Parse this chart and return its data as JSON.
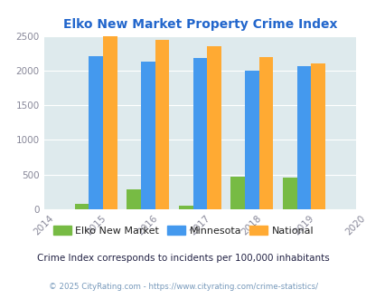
{
  "title": "Elko New Market Property Crime Index",
  "years": [
    2015,
    2016,
    2017,
    2018,
    2019
  ],
  "elko": [
    75,
    290,
    55,
    470,
    455
  ],
  "minnesota": [
    2210,
    2130,
    2185,
    2000,
    2065
  ],
  "national": [
    2490,
    2445,
    2350,
    2195,
    2100
  ],
  "xlim": [
    2014,
    2020
  ],
  "ylim": [
    0,
    2500
  ],
  "yticks": [
    0,
    500,
    1000,
    1500,
    2000,
    2500
  ],
  "color_elko": "#77bb44",
  "color_minnesota": "#4499ee",
  "color_national": "#ffaa33",
  "bg_color": "#deeaed",
  "title_color": "#2266cc",
  "legend_label_color": "#222222",
  "note_color": "#222244",
  "footer_color": "#7799bb",
  "legend_labels": [
    "Elko New Market",
    "Minnesota",
    "National"
  ],
  "note": "Crime Index corresponds to incidents per 100,000 inhabitants",
  "footer": "© 2025 CityRating.com - https://www.cityrating.com/crime-statistics/",
  "bar_width": 0.27
}
